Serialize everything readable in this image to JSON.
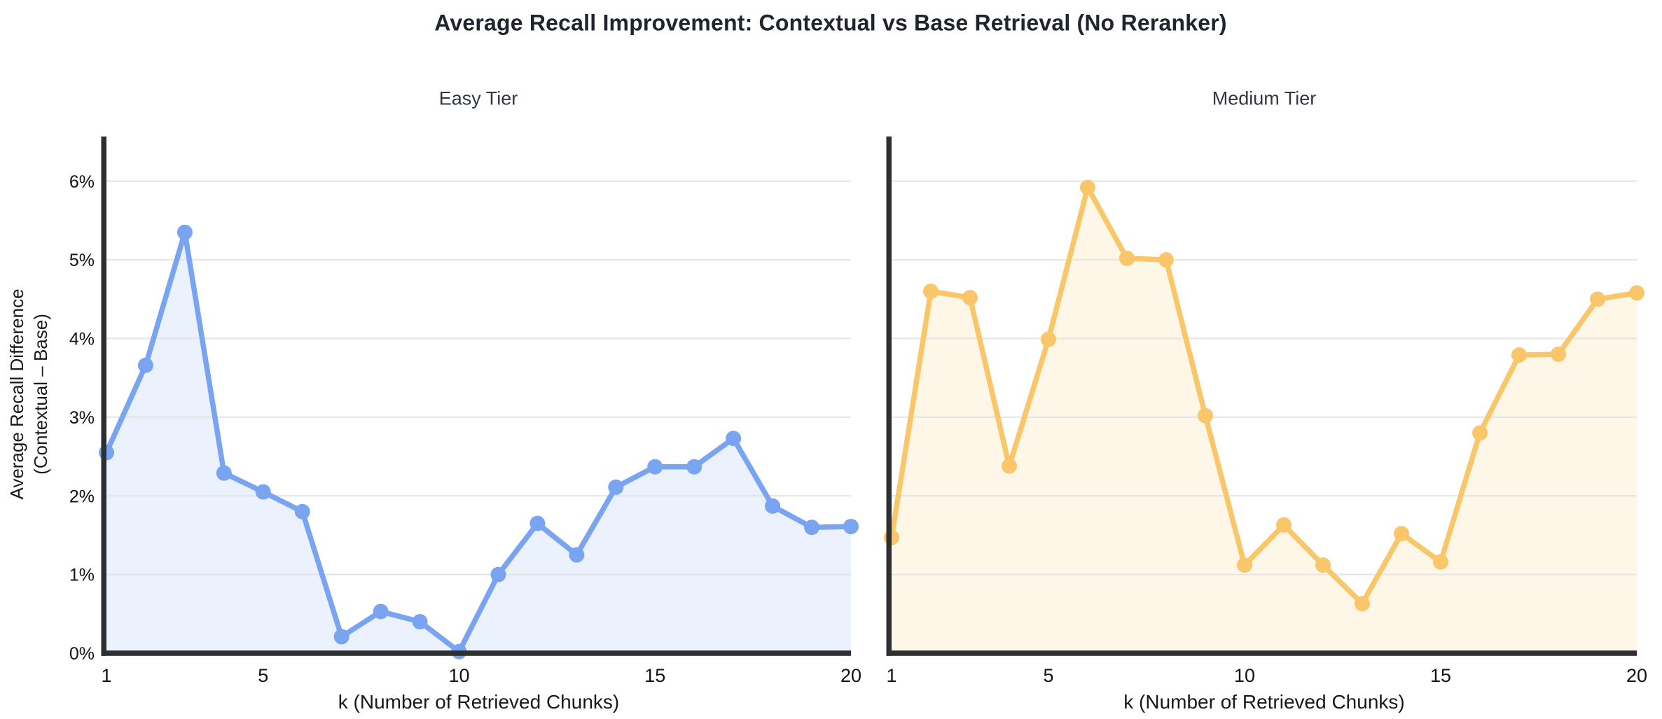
{
  "title": "Average Recall Improvement: Contextual vs Base Retrieval (No Reranker)",
  "y_axis_label_line1": "Average Recall Difference",
  "y_axis_label_line2": "(Contextual – Base)",
  "colors": {
    "background": "#ffffff",
    "title_text": "#20242e",
    "subtitle_text": "#32373f",
    "axis_line": "#2e2f31",
    "gridline": "#e4e4e4",
    "tick_text": "#121316",
    "easy_series": "#79a4f2",
    "medium_series": "#f9c669"
  },
  "chart_data": [
    {
      "type": "area",
      "title": "Easy Tier",
      "xlabel": "k (Number of Retrieved Chunks)",
      "ylabel": "Average Recall Difference (Contextual – Base)",
      "x": [
        1,
        2,
        3,
        4,
        5,
        6,
        7,
        8,
        9,
        10,
        11,
        12,
        13,
        14,
        15,
        16,
        17,
        18,
        19,
        20
      ],
      "values": [
        2.55,
        3.66,
        5.35,
        2.29,
        2.05,
        1.8,
        0.21,
        0.53,
        0.4,
        0.02,
        1.0,
        1.65,
        1.25,
        2.11,
        2.37,
        2.37,
        2.73,
        1.87,
        1.6,
        1.61
      ],
      "color": "#79a4f2",
      "fill_opacity": 0.15,
      "ylim": [
        0,
        6.55
      ],
      "x_ticks": [
        1,
        5,
        10,
        15,
        20
      ],
      "y_ticks": [
        "0%",
        "1%",
        "2%",
        "3%",
        "4%",
        "5%",
        "6%"
      ],
      "grid": true,
      "show_y_tick_labels": true,
      "legend": "none"
    },
    {
      "type": "area",
      "title": "Medium Tier",
      "xlabel": "k (Number of Retrieved Chunks)",
      "ylabel": "",
      "x": [
        1,
        2,
        3,
        4,
        5,
        6,
        7,
        8,
        9,
        10,
        11,
        12,
        13,
        14,
        15,
        16,
        17,
        18,
        19,
        20
      ],
      "values": [
        1.47,
        4.6,
        4.52,
        2.38,
        3.99,
        5.92,
        5.02,
        5.0,
        3.02,
        1.12,
        1.63,
        1.12,
        0.63,
        1.52,
        1.16,
        2.8,
        3.79,
        3.8,
        4.5,
        4.58
      ],
      "color": "#f9c669",
      "fill_opacity": 0.16,
      "ylim": [
        0,
        6.55
      ],
      "x_ticks": [
        1,
        5,
        10,
        15,
        20
      ],
      "y_ticks": [
        "0%",
        "1%",
        "2%",
        "3%",
        "4%",
        "5%",
        "6%"
      ],
      "grid": true,
      "show_y_tick_labels": false,
      "legend": "none"
    }
  ]
}
